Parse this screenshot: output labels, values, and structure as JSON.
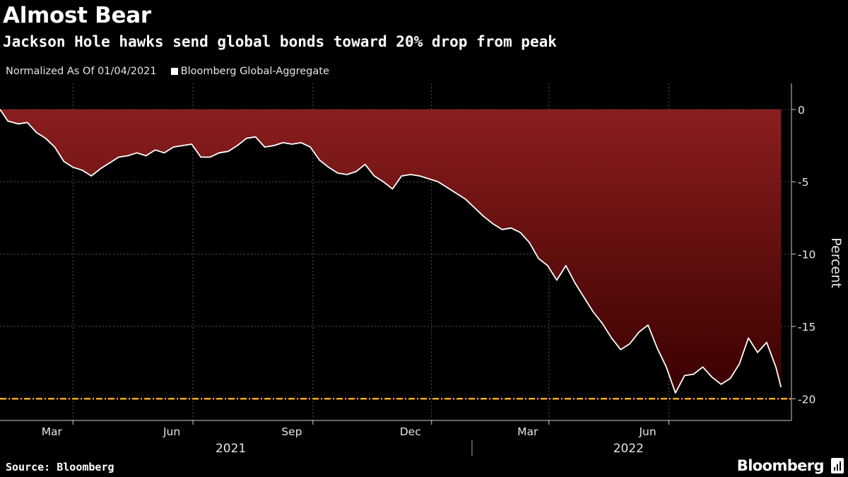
{
  "chart_data": {
    "type": "area",
    "title": "Almost Bear",
    "subtitle": "Jackson Hole hawks send global bonds toward 20% drop from peak",
    "note": "Normalized As Of 01/04/2021",
    "ylabel": "Percent",
    "xlabel": "",
    "ylim": [
      -21.5,
      1.8
    ],
    "xlim": [
      "2021-01-04",
      "2022-09-03"
    ],
    "yticks": [
      0,
      -5,
      -10,
      -15,
      -20
    ],
    "xticks": [
      {
        "date": "2021-03-01",
        "label": "Mar"
      },
      {
        "date": "2021-06-01",
        "label": "Jun"
      },
      {
        "date": "2021-09-01",
        "label": "Sep"
      },
      {
        "date": "2021-12-01",
        "label": "Dec"
      },
      {
        "date": "2022-03-01",
        "label": "Mar"
      },
      {
        "date": "2022-06-01",
        "label": "Jun"
      }
    ],
    "years": [
      {
        "label": "2021",
        "center": "2021-06-30"
      },
      {
        "label": "2022",
        "center": "2022-05-01"
      }
    ],
    "year_divider": "2022-01-01",
    "grid": true,
    "legend_position": "top-left",
    "reference_line": {
      "y": -20,
      "color": "#f5a623"
    },
    "series": [
      {
        "name": "Bloomberg Global-Aggregate",
        "color": "#ffffff",
        "fill_top": "#8b1e1e",
        "fill_bottom": "#3a0000",
        "x": [
          "2021-01-04",
          "2021-01-10",
          "2021-01-18",
          "2021-01-25",
          "2021-02-01",
          "2021-02-08",
          "2021-02-15",
          "2021-02-22",
          "2021-03-01",
          "2021-03-08",
          "2021-03-15",
          "2021-03-22",
          "2021-03-29",
          "2021-04-05",
          "2021-04-12",
          "2021-04-19",
          "2021-04-26",
          "2021-05-03",
          "2021-05-10",
          "2021-05-17",
          "2021-05-24",
          "2021-05-31",
          "2021-06-07",
          "2021-06-14",
          "2021-06-21",
          "2021-06-28",
          "2021-07-05",
          "2021-07-12",
          "2021-07-19",
          "2021-07-26",
          "2021-08-02",
          "2021-08-09",
          "2021-08-16",
          "2021-08-23",
          "2021-08-30",
          "2021-09-06",
          "2021-09-13",
          "2021-09-20",
          "2021-09-27",
          "2021-10-04",
          "2021-10-11",
          "2021-10-18",
          "2021-10-25",
          "2021-11-01",
          "2021-11-08",
          "2021-11-15",
          "2021-11-22",
          "2021-11-29",
          "2021-12-06",
          "2021-12-13",
          "2021-12-20",
          "2021-12-27",
          "2022-01-03",
          "2022-01-10",
          "2022-01-17",
          "2022-01-24",
          "2022-01-31",
          "2022-02-07",
          "2022-02-14",
          "2022-02-21",
          "2022-02-28",
          "2022-03-07",
          "2022-03-14",
          "2022-03-21",
          "2022-03-28",
          "2022-04-04",
          "2022-04-11",
          "2022-04-18",
          "2022-04-25",
          "2022-05-02",
          "2022-05-09",
          "2022-05-16",
          "2022-05-23",
          "2022-05-30",
          "2022-06-06",
          "2022-06-13",
          "2022-06-20",
          "2022-06-27",
          "2022-07-04",
          "2022-07-11",
          "2022-07-18",
          "2022-07-25",
          "2022-08-01",
          "2022-08-08",
          "2022-08-15",
          "2022-08-22",
          "2022-08-26"
        ],
        "values": [
          0,
          -0.8,
          -1.0,
          -0.9,
          -1.6,
          -2.0,
          -2.6,
          -3.6,
          -4.0,
          -4.2,
          -4.6,
          -4.1,
          -3.7,
          -3.3,
          -3.2,
          -3.0,
          -3.2,
          -2.8,
          -3.0,
          -2.6,
          -2.5,
          -2.4,
          -3.3,
          -3.3,
          -3.0,
          -2.9,
          -2.5,
          -2.0,
          -1.9,
          -2.6,
          -2.5,
          -2.3,
          -2.4,
          -2.3,
          -2.6,
          -3.5,
          -4.0,
          -4.4,
          -4.5,
          -4.3,
          -3.8,
          -4.6,
          -5.0,
          -5.5,
          -4.6,
          -4.5,
          -4.6,
          -4.8,
          -5.0,
          -5.4,
          -5.8,
          -6.2,
          -6.8,
          -7.4,
          -7.9,
          -8.3,
          -8.2,
          -8.5,
          -9.2,
          -10.3,
          -10.8,
          -11.8,
          -10.8,
          -12.0,
          -13.0,
          -14.0,
          -14.8,
          -15.8,
          -16.6,
          -16.2,
          -15.4,
          -14.9,
          -16.5,
          -17.8,
          -19.6,
          -18.4,
          -18.3,
          -17.8,
          -18.5,
          -19.0,
          -18.6,
          -17.6,
          -15.8,
          -16.8,
          -16.1,
          -17.8,
          -19.2
        ]
      }
    ]
  },
  "source_label": "Source: Bloomberg",
  "brand_label": "Bloomberg"
}
